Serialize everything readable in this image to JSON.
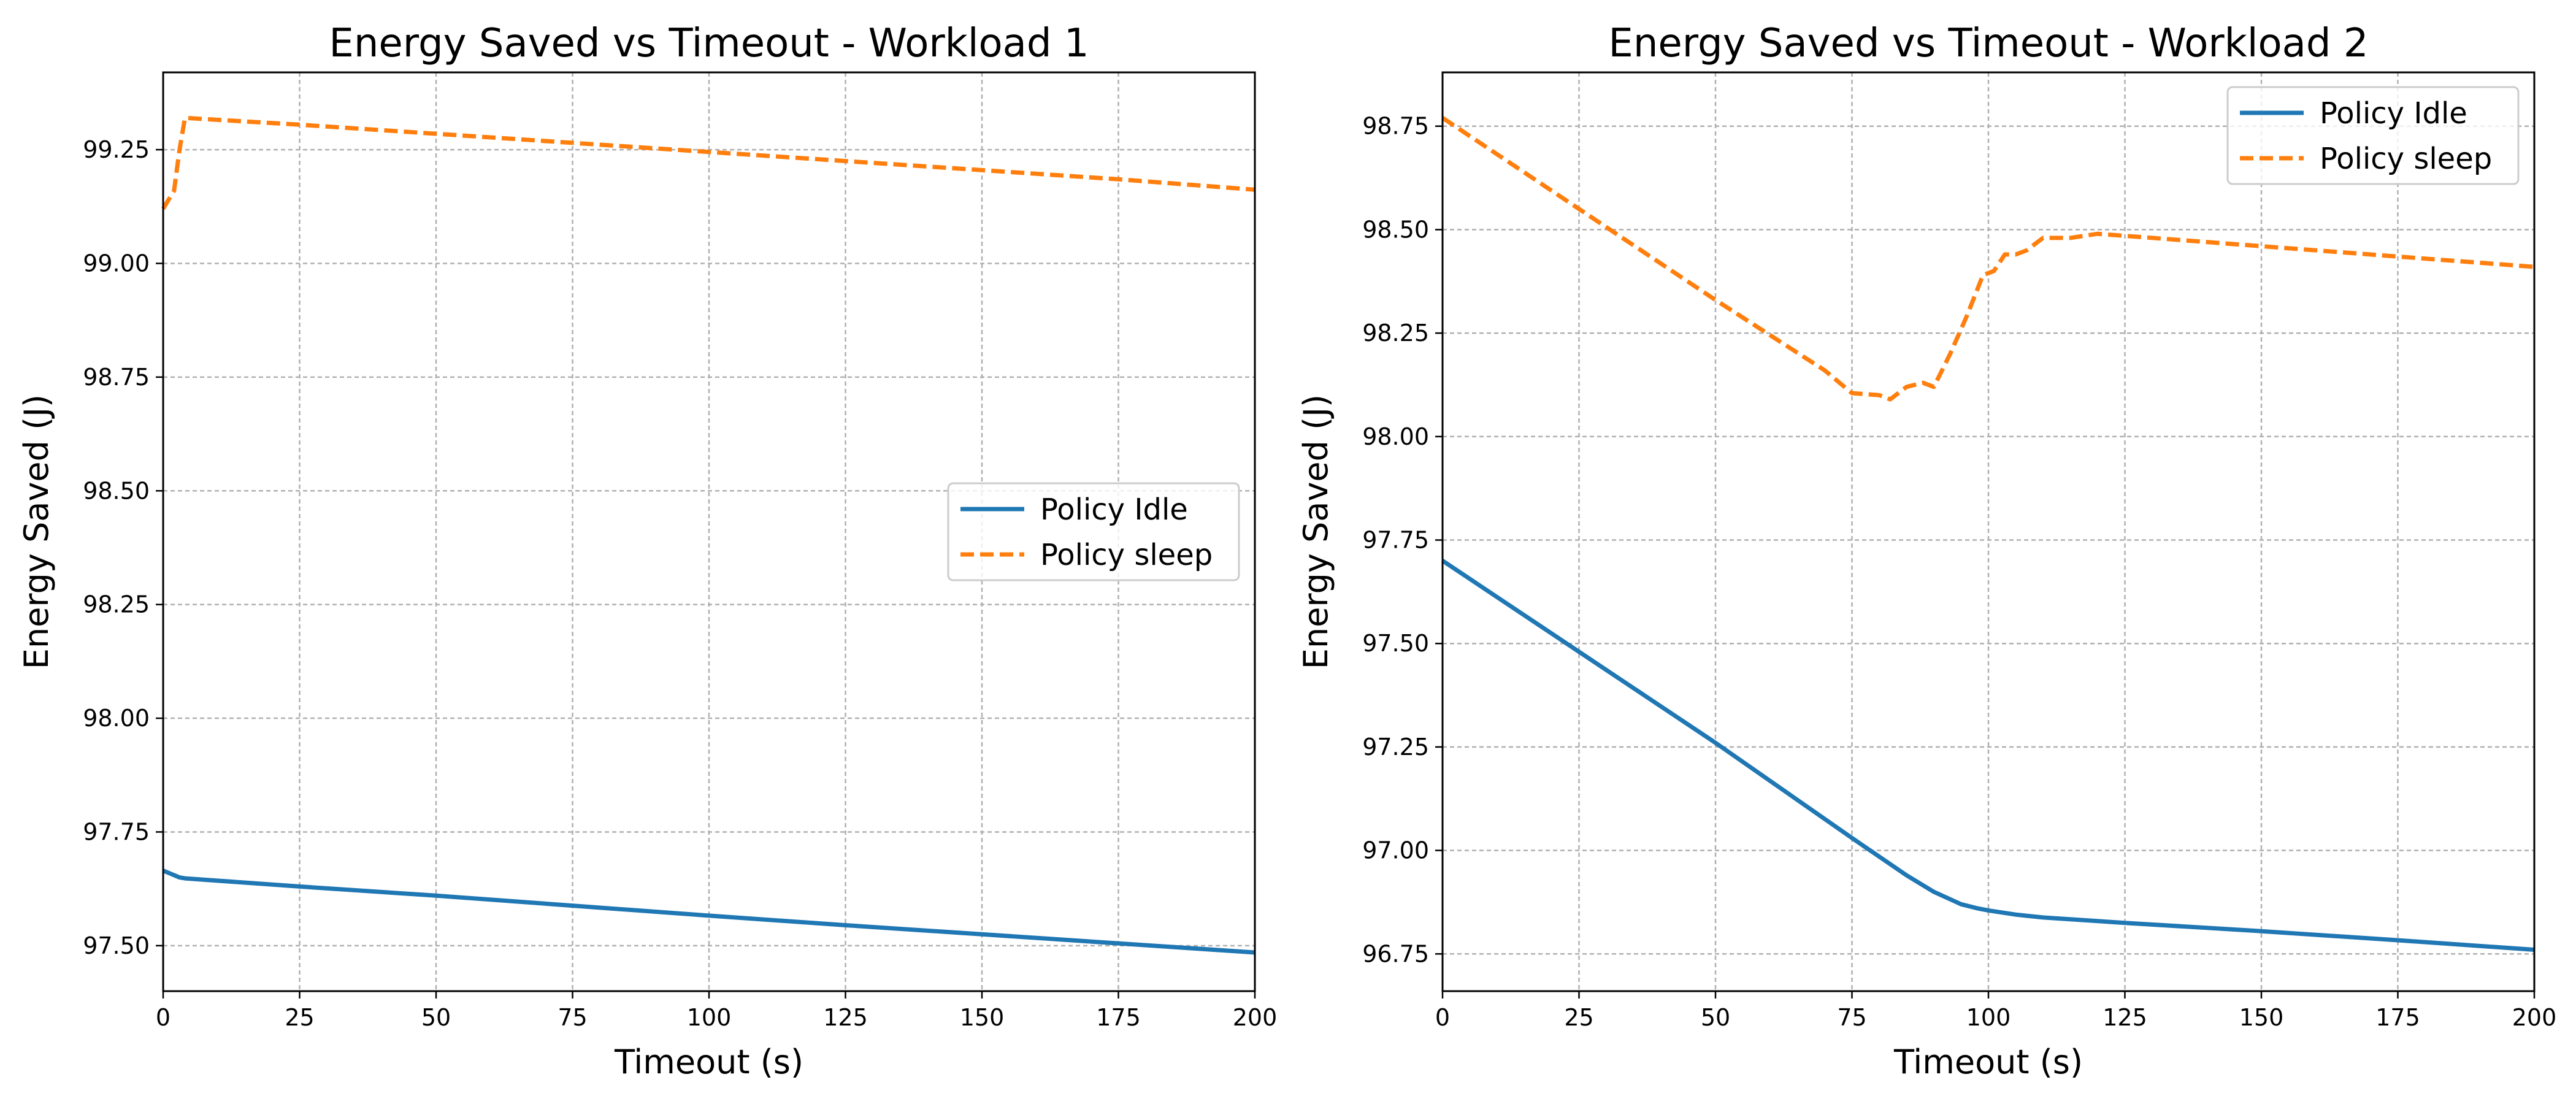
{
  "chart_data": [
    {
      "type": "line",
      "title": "Energy Saved vs Timeout - Workload 1",
      "xlabel": "Timeout (s)",
      "ylabel": "Energy Saved (J)",
      "xlim": [
        0,
        200
      ],
      "ylim": [
        97.4,
        99.42
      ],
      "xticks": [
        0,
        25,
        50,
        75,
        100,
        125,
        150,
        175,
        200
      ],
      "yticks": [
        97.5,
        97.75,
        98.0,
        98.25,
        98.5,
        98.75,
        99.0,
        99.25
      ],
      "grid": true,
      "legend_position": "center-right",
      "series": [
        {
          "name": "Policy Idle",
          "color": "#1f77b4",
          "style": "solid",
          "x": [
            0,
            1,
            2,
            3,
            4,
            25,
            50,
            75,
            100,
            125,
            150,
            175,
            200
          ],
          "y": [
            97.665,
            97.66,
            97.655,
            97.65,
            97.648,
            97.63,
            97.61,
            97.588,
            97.566,
            97.545,
            97.525,
            97.505,
            97.485
          ]
        },
        {
          "name": "Policy sleep",
          "color": "#ff7f0e",
          "style": "dashed",
          "x": [
            0,
            1,
            2,
            3,
            4,
            25,
            50,
            75,
            100,
            125,
            150,
            175,
            200
          ],
          "y": [
            99.12,
            99.14,
            99.16,
            99.25,
            99.32,
            99.305,
            99.285,
            99.265,
            99.245,
            99.225,
            99.205,
            99.185,
            99.162
          ]
        }
      ]
    },
    {
      "type": "line",
      "title": "Energy Saved vs Timeout - Workload 2",
      "xlabel": "Timeout (s)",
      "ylabel": "Energy Saved (J)",
      "xlim": [
        0,
        200
      ],
      "ylim": [
        96.66,
        98.88
      ],
      "xticks": [
        0,
        25,
        50,
        75,
        100,
        125,
        150,
        175,
        200
      ],
      "yticks": [
        96.75,
        97.0,
        97.25,
        97.5,
        97.75,
        98.0,
        98.25,
        98.5,
        98.75
      ],
      "grid": true,
      "legend_position": "top-right",
      "series": [
        {
          "name": "Policy Idle",
          "color": "#1f77b4",
          "style": "solid",
          "x": [
            0,
            25,
            50,
            75,
            85,
            90,
            95,
            98,
            100,
            105,
            110,
            125,
            150,
            175,
            200
          ],
          "y": [
            97.7,
            97.48,
            97.26,
            97.03,
            96.94,
            96.9,
            96.87,
            96.86,
            96.855,
            96.845,
            96.838,
            96.825,
            96.805,
            96.783,
            96.76
          ]
        },
        {
          "name": "Policy sleep",
          "color": "#ff7f0e",
          "style": "dashed",
          "x": [
            0,
            25,
            50,
            70,
            75,
            80,
            82,
            85,
            88,
            90,
            93,
            96,
            99,
            101,
            103,
            105,
            107,
            110,
            115,
            120,
            125,
            150,
            175,
            200
          ],
          "y": [
            98.77,
            98.55,
            98.33,
            98.16,
            98.105,
            98.1,
            98.09,
            98.12,
            98.13,
            98.12,
            98.2,
            98.29,
            98.39,
            98.4,
            98.44,
            98.44,
            98.45,
            98.48,
            98.48,
            98.49,
            98.485,
            98.46,
            98.435,
            98.41
          ]
        }
      ]
    }
  ]
}
